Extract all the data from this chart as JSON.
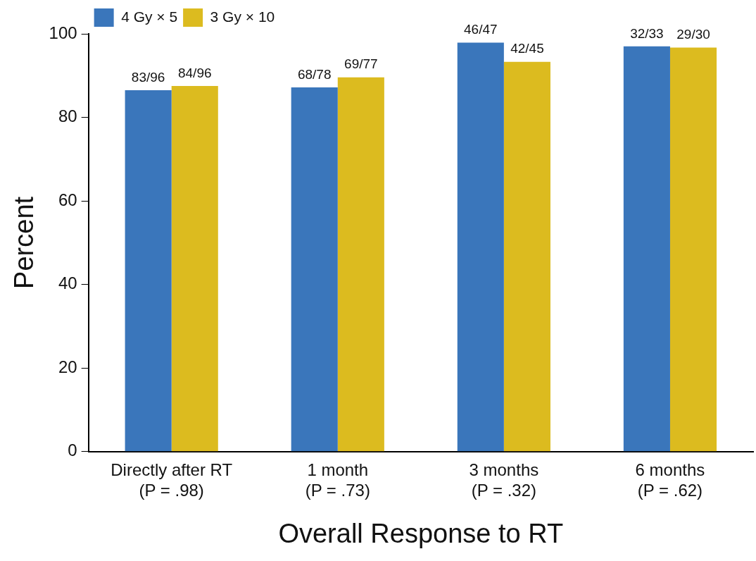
{
  "chart_data": {
    "type": "bar",
    "xlabel": "Overall Response to RT",
    "ylabel": "Percent",
    "categories": [
      "Directly after RT\n(P = .98)",
      "1 month\n(P = .73)",
      "3 months\n(P = .32)",
      "6 months\n(P = .62)"
    ],
    "series": [
      {
        "name": "4 Gy × 5",
        "color": "#3a76bb",
        "values": [
          86.5,
          87.2,
          97.9,
          97.0
        ],
        "value_labels": [
          "83/96",
          "68/78",
          "46/47",
          "32/33"
        ]
      },
      {
        "name": "3 Gy × 10",
        "color": "#dcbb1f",
        "values": [
          87.5,
          89.6,
          93.3,
          96.7
        ],
        "value_labels": [
          "84/96",
          "69/77",
          "42/45",
          "29/30"
        ]
      }
    ],
    "ylim": [
      0,
      100
    ],
    "yticks": [
      0,
      20,
      40,
      60,
      80,
      100
    ],
    "grid": false,
    "legend": "top left"
  }
}
